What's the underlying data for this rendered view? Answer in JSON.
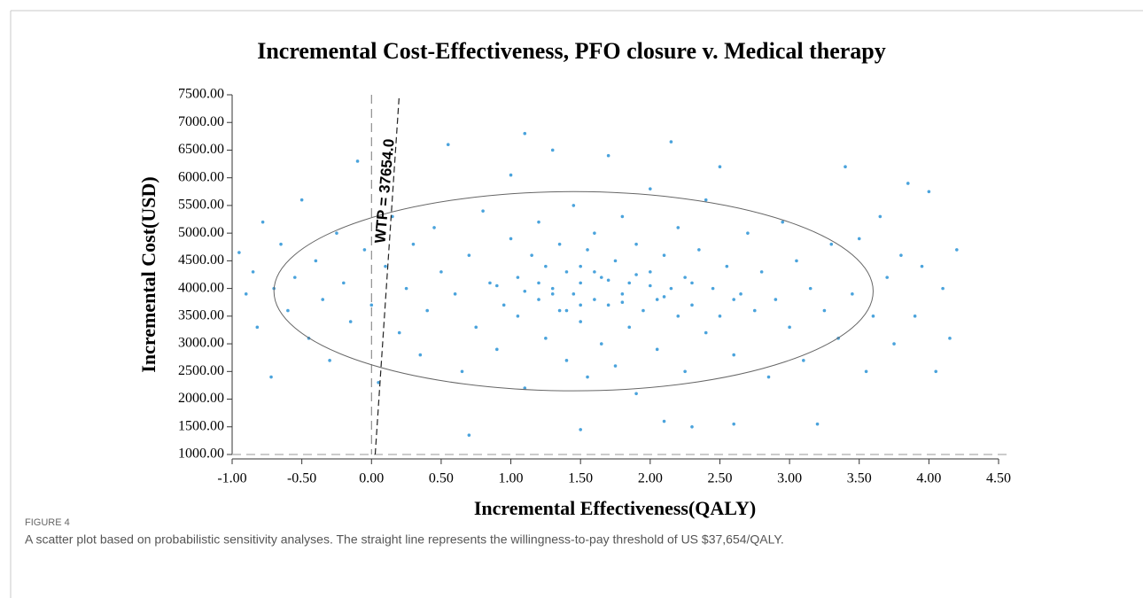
{
  "chart_data": {
    "type": "scatter",
    "title": "Incremental Cost-Effectiveness, PFO closure v. Medical therapy",
    "xlabel": "Incremental Effectiveness(QALY)",
    "ylabel": "Incremental Cost(USD)",
    "annotation": "WTP = 37654.0",
    "wtp": 37654,
    "color": "#4aa3dc",
    "xlim": [
      -1,
      4.5
    ],
    "ylim": [
      1000,
      7500
    ],
    "xticks": [
      {
        "value": -1,
        "label": "-1.00"
      },
      {
        "value": -0.5,
        "label": "-0.50"
      },
      {
        "value": 0,
        "label": "0.00"
      },
      {
        "value": 0.5,
        "label": "0.50"
      },
      {
        "value": 1,
        "label": "1.00"
      },
      {
        "value": 1.5,
        "label": "1.50"
      },
      {
        "value": 2,
        "label": "2.00"
      },
      {
        "value": 2.5,
        "label": "2.50"
      },
      {
        "value": 3,
        "label": "3.00"
      },
      {
        "value": 3.5,
        "label": "3.50"
      },
      {
        "value": 4,
        "label": "4.00"
      },
      {
        "value": 4.5,
        "label": "4.50"
      }
    ],
    "yticks": [
      {
        "value": 1000,
        "label": "1000.00"
      },
      {
        "value": 1500,
        "label": "1500.00"
      },
      {
        "value": 2000,
        "label": "2000.00"
      },
      {
        "value": 2500,
        "label": "2500.00"
      },
      {
        "value": 3000,
        "label": "3000.00"
      },
      {
        "value": 3500,
        "label": "3500.00"
      },
      {
        "value": 4000,
        "label": "4000.00"
      },
      {
        "value": 4500,
        "label": "4500.00"
      },
      {
        "value": 5000,
        "label": "5000.00"
      },
      {
        "value": 5500,
        "label": "5500.00"
      },
      {
        "value": 6000,
        "label": "6000.00"
      },
      {
        "value": 6500,
        "label": "6500.00"
      },
      {
        "value": 7000,
        "label": "7000.00"
      },
      {
        "value": 7500,
        "label": "7500.00"
      }
    ],
    "ellipse": {
      "center": [
        1.45,
        3950
      ],
      "rx": 2.15,
      "ry": 1800
    },
    "x": [
      -0.95,
      -0.9,
      -0.85,
      -0.82,
      -0.78,
      -0.72,
      -0.7,
      -0.65,
      -0.6,
      -0.55,
      -0.5,
      -0.45,
      -0.4,
      -0.35,
      -0.3,
      -0.25,
      -0.2,
      -0.15,
      -0.1,
      -0.05,
      0.0,
      0.05,
      0.1,
      0.15,
      0.2,
      0.25,
      0.3,
      0.35,
      0.4,
      0.45,
      0.5,
      0.55,
      0.6,
      0.65,
      0.7,
      0.7,
      0.75,
      0.8,
      0.85,
      0.9,
      0.95,
      1.0,
      1.0,
      1.05,
      1.05,
      1.1,
      1.1,
      1.15,
      1.2,
      1.2,
      1.25,
      1.25,
      1.3,
      1.3,
      1.35,
      1.35,
      1.4,
      1.4,
      1.45,
      1.45,
      1.5,
      1.5,
      1.5,
      1.55,
      1.55,
      1.6,
      1.6,
      1.65,
      1.65,
      1.7,
      1.7,
      1.75,
      1.75,
      1.8,
      1.8,
      1.85,
      1.85,
      1.9,
      1.9,
      1.95,
      2.0,
      2.0,
      2.05,
      2.05,
      2.1,
      2.1,
      2.15,
      2.15,
      2.2,
      2.2,
      2.25,
      2.25,
      2.3,
      2.3,
      2.35,
      2.4,
      2.4,
      2.45,
      2.5,
      2.5,
      2.55,
      2.6,
      2.6,
      2.65,
      2.7,
      2.75,
      2.8,
      2.85,
      2.9,
      2.95,
      3.0,
      3.05,
      3.1,
      3.15,
      3.2,
      3.25,
      3.3,
      3.35,
      3.4,
      3.45,
      3.5,
      3.55,
      3.6,
      3.65,
      3.7,
      3.75,
      3.8,
      3.85,
      3.9,
      3.95,
      4.0,
      4.05,
      4.1,
      4.15,
      4.2,
      1.2,
      1.4,
      1.6,
      1.8,
      2.0,
      1.3,
      1.7,
      1.1,
      1.9,
      2.1,
      0.9,
      2.3,
      1.5,
      1.5,
      2.6
    ],
    "values": [
      4650,
      3900,
      4300,
      3300,
      5200,
      2400,
      4000,
      4800,
      3600,
      4200,
      5600,
      3100,
      4500,
      3800,
      2700,
      5000,
      4100,
      3400,
      6300,
      4700,
      3700,
      2300,
      4400,
      5300,
      3200,
      4000,
      4800,
      2800,
      3600,
      5100,
      4300,
      6600,
      3900,
      2500,
      1350,
      4600,
      3300,
      5400,
      4100,
      2900,
      3700,
      4900,
      6050,
      4200,
      3500,
      2200,
      6800,
      4600,
      3800,
      5200,
      3100,
      4400,
      4000,
      6500,
      3600,
      4800,
      2700,
      4300,
      3900,
      5500,
      1450,
      4100,
      3400,
      4700,
      2400,
      3800,
      5000,
      4200,
      3000,
      6400,
      3700,
      4500,
      2600,
      3900,
      5300,
      4100,
      3300,
      4800,
      2100,
      3600,
      4300,
      5800,
      3800,
      2900,
      4600,
      1600,
      4000,
      6650,
      3500,
      5100,
      4200,
      2500,
      3700,
      1500,
      4700,
      3200,
      5600,
      4000,
      3500,
      6200,
      4400,
      2800,
      1550,
      3900,
      5000,
      3600,
      4300,
      2400,
      3800,
      5200,
      3300,
      4500,
      2700,
      4000,
      1550,
      3600,
      4800,
      3100,
      6200,
      3900,
      4900,
      2500,
      3500,
      5300,
      4200,
      3000,
      4600,
      5900,
      3500,
      4400,
      5750,
      2500,
      4000,
      3100,
      4700,
      4100,
      3600,
      4300,
      3750,
      4050,
      3900,
      4150,
      3950,
      4250,
      3850,
      4050,
      4100,
      3700,
      4400,
      3800
    ]
  },
  "figure": {
    "label": "FIGURE 4",
    "caption": "A scatter plot based on probabilistic sensitivity analyses. The straight line represents the willingness-to-pay threshold of US $37,654/QALY."
  }
}
